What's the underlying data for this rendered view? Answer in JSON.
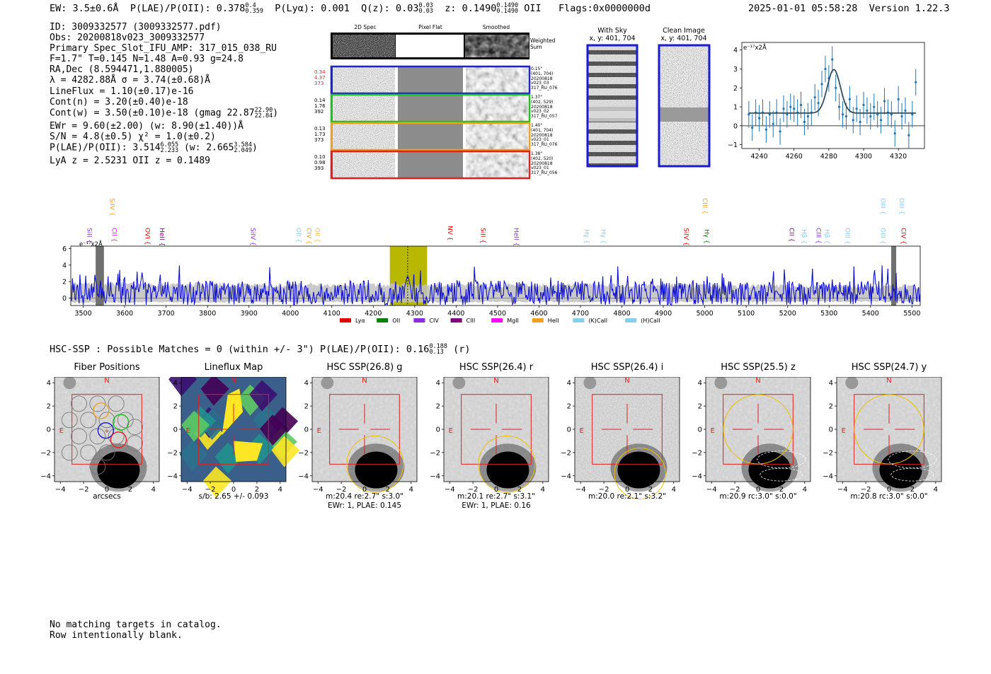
{
  "header": {
    "ew": "EW: 3.5±0.6Å",
    "plae_prefix": "P(LAE)/P(OII): 0.378",
    "plae_sup": "0.4",
    "plae_sub": "0.359",
    "plya": "P(Lyα): 0.001",
    "qz_prefix": "Q(z): 0.03",
    "qz_sup": "0.03",
    "qz_sub": "0.03",
    "z_prefix": "z: 0.1490",
    "z_sup": "0.1490",
    "z_sub": "0.1490",
    "z_line": "OII",
    "flags": "Flags:0x0000000d",
    "datetime": "2025-01-01 05:58:28",
    "version": "Version 1.22.3"
  },
  "info": {
    "id": "ID: 3009332577 (3009332577.pdf)",
    "obs": "Obs: 20200818v023_3009332577",
    "primary": "Primary Spec_Slot_IFU_AMP: 317_015_038_RU",
    "ftna": "F=1.7\"  T=0.145  N=1.48  A=0.93  g=24.8",
    "radec": "RA,Dec (8.594471,1.880005)",
    "lambda": "λ = 4282.88Å  σ = 3.74(±0.68)Å",
    "lineflux": "LineFlux = 1.10(±0.17)e-16",
    "contn": "Cont(n) = 3.20(±0.40)e-18",
    "contw_prefix": "Cont(w) = 3.50(±0.10)e-18 (gmag 22.87",
    "contw_sup": "22.90",
    "contw_sub": "22.84",
    "contw_suffix": ")",
    "ewr": "EWr = 9.60(±2.00) (w: 8.90(±1.40))Å",
    "sn": "S/N = 4.8(±0.5)  χ² = 1.0(±0.2)",
    "plae_prefix": "P(LAE)/P(OII): 3.514",
    "plae_sup": "6.055",
    "plae_sub": "2.233",
    "plae_mid": "(w: 2.665",
    "plae_w_sup": "3.584",
    "plae_w_sub": "2.049",
    "plae_end": ")",
    "lyaz": "LyA z = 2.5231  OII z = 0.1489"
  },
  "cutouts": {
    "col_2d": "2D Spec",
    "col_flat": "Pixel Flat",
    "col_smooth": "Smoothed",
    "weighted": "Weighted Sum",
    "rows": [
      {
        "left": [
          "0.34",
          "4.37",
          "373"
        ],
        "color": "#2020d0",
        "right": [
          "0.15\"",
          "(401, 704)",
          "20200818",
          "v023_03",
          "317_RU_076"
        ]
      },
      {
        "left": [
          "0.14",
          "1.76",
          "392"
        ],
        "color": "#20c020",
        "right": [
          "1.37\"",
          "(402, 529)",
          "20200818",
          "v023_02",
          "317_RU_057"
        ]
      },
      {
        "left": [
          "0.13",
          "1.73",
          "373"
        ],
        "color": "#f0a020",
        "right": [
          "1.40\"",
          "(401, 704)",
          "20200818",
          "v023_01",
          "317_RU_076"
        ]
      },
      {
        "left": [
          "0.10",
          "0.98",
          "393"
        ],
        "color": "#e02020",
        "right": [
          "1.38\"",
          "(402, 520)",
          "20200818",
          "v023_01",
          "317_RU_056"
        ]
      }
    ],
    "first_left_color": "#e02020",
    "with_sky_title": "With Sky",
    "with_sky_xy": "x, y: 401, 704",
    "clean_title": "Clean Image",
    "clean_xy": "x, y: 401, 704"
  },
  "fit_chart": {
    "type": "scatter",
    "ylabel": "e⁻¹⁷x2Å",
    "xlim": [
      4230,
      4335
    ],
    "ylim": [
      -1.2,
      4.4
    ],
    "x_ticks": [
      4240,
      4260,
      4280,
      4300,
      4320
    ],
    "y_ticks": [
      -1,
      0,
      1,
      2,
      3,
      4
    ],
    "x": [
      4234,
      4236,
      4238,
      4240,
      4242,
      4244,
      4246,
      4248,
      4250,
      4252,
      4254,
      4256,
      4258,
      4260,
      4262,
      4264,
      4266,
      4268,
      4270,
      4272,
      4274,
      4276,
      4278,
      4280,
      4282,
      4284,
      4286,
      4288,
      4290,
      4292,
      4294,
      4296,
      4298,
      4300,
      4302,
      4304,
      4306,
      4308,
      4310,
      4312,
      4314,
      4316,
      4318,
      4320,
      4322,
      4324,
      4326,
      4328,
      4330
    ],
    "y": [
      0.6,
      -0.1,
      0.7,
      0.4,
      0.7,
      -0.2,
      0.6,
      0.1,
      0.7,
      -0.3,
      0.9,
      0.6,
      1.0,
      0.9,
      0.7,
      1.1,
      0.2,
      0.5,
      0.7,
      1.5,
      1.2,
      2.2,
      3.0,
      2.5,
      3.5,
      2.0,
      1.0,
      0.6,
      0.5,
      1.4,
      0.3,
      0.9,
      0.2,
      1.1,
      0.8,
      0.5,
      1.0,
      0.6,
      0.3,
      1.3,
      0.7,
      0.6,
      -0.4,
      1.4,
      0.5,
      0.8,
      -0.5,
      0.6,
      2.3
    ],
    "err": [
      0.7,
      0.7,
      0.7,
      0.7,
      0.7,
      0.7,
      0.7,
      0.7,
      0.7,
      0.7,
      0.7,
      0.7,
      0.7,
      0.7,
      0.7,
      0.7,
      0.7,
      0.7,
      0.7,
      0.7,
      0.7,
      0.7,
      0.7,
      0.7,
      0.7,
      0.7,
      0.7,
      0.7,
      0.7,
      0.7,
      0.7,
      0.7,
      0.7,
      0.7,
      0.7,
      0.7,
      0.7,
      0.7,
      0.7,
      0.7,
      0.7,
      0.7,
      0.7,
      0.7,
      0.7,
      0.7,
      0.7,
      0.7,
      0.7
    ],
    "fit": {
      "continuum": 0.67,
      "amplitude": 2.3,
      "center": 4282.9,
      "sigma": 3.74
    }
  },
  "spectrum": {
    "type": "line",
    "ylabel": "e⁻¹⁷x2Å",
    "xlim": [
      3470,
      5520
    ],
    "ylim": [
      -0.9,
      6.3
    ],
    "x_ticks": [
      3500,
      3600,
      3700,
      3800,
      3900,
      4000,
      4100,
      4200,
      4300,
      4400,
      4500,
      4600,
      4700,
      4800,
      4900,
      5000,
      5100,
      5200,
      5300,
      5400,
      5500
    ],
    "y_ticks": [
      0,
      2,
      4,
      6
    ],
    "highlight": [
      4240,
      4330
    ],
    "marker": 4283,
    "masked": [
      [
        3530,
        3550
      ],
      [
        5450,
        5462
      ]
    ],
    "lines": [
      {
        "name": "SiII",
        "wave": 3505,
        "color": "#8a2be2",
        "row": 2
      },
      {
        "name": "CII",
        "wave": 3565,
        "color": "#ff00ff",
        "row": 2
      },
      {
        "name": "SiIV",
        "wave": 3560,
        "color": "#f0a020",
        "row": 0
      },
      {
        "name": "OVI",
        "wave": 3645,
        "color": "#e00000",
        "row": 2
      },
      {
        "name": "HeII",
        "wave": 3680,
        "color": "#800080",
        "row": 2
      },
      {
        "name": "SiIV",
        "wave": 3900,
        "color": "#8a2be2",
        "row": 2
      },
      {
        "name": "OII",
        "wave": 4010,
        "color": "#87ceeb",
        "row": 2
      },
      {
        "name": "CIV",
        "wave": 4035,
        "color": "#f0a020",
        "row": 2
      },
      {
        "name": "OII",
        "wave": 4055,
        "color": "#f0c040",
        "row": 2
      },
      {
        "name": "NV",
        "wave": 4375,
        "color": "#e00000",
        "row": 1
      },
      {
        "name": "SiII",
        "wave": 4455,
        "color": "#e00000",
        "row": 2
      },
      {
        "name": "HeII",
        "wave": 4535,
        "color": "#8a2be2",
        "row": 2
      },
      {
        "name": "Hγ",
        "wave": 4705,
        "color": "#87ceeb",
        "row": 3
      },
      {
        "name": "Hγ",
        "wave": 4745,
        "color": "#87ceeb",
        "row": 3
      },
      {
        "name": "SiIV",
        "wave": 4945,
        "color": "#e00000",
        "row": 2
      },
      {
        "name": "CIII",
        "wave": 4990,
        "color": "#f0a020",
        "row": 0
      },
      {
        "name": "Hγ",
        "wave": 4995,
        "color": "#008000",
        "row": 3
      },
      {
        "name": "CII",
        "wave": 5200,
        "color": "#800080",
        "row": 2
      },
      {
        "name": "Hβ",
        "wave": 5230,
        "color": "#87ceeb",
        "row": 3
      },
      {
        "name": "CIII",
        "wave": 5265,
        "color": "#8a2be2",
        "row": 2
      },
      {
        "name": "Hβ",
        "wave": 5285,
        "color": "#87ceeb",
        "row": 3
      },
      {
        "name": "OIII",
        "wave": 5335,
        "color": "#87ceeb",
        "row": 2
      },
      {
        "name": "OIII",
        "wave": 5420,
        "color": "#87ceeb",
        "row": 0
      },
      {
        "name": "OIII",
        "wave": 5465,
        "color": "#87ceeb",
        "row": 0
      },
      {
        "name": "OIII",
        "wave": 5420,
        "color": "#87ceeb",
        "row": 2
      },
      {
        "name": "CIV",
        "wave": 5470,
        "color": "#e00000",
        "row": 2
      }
    ],
    "legend": [
      {
        "name": "Lyα",
        "color": "#e00000"
      },
      {
        "name": "OII",
        "color": "#008000"
      },
      {
        "name": "CIV",
        "color": "#8a2be2"
      },
      {
        "name": "CIII",
        "color": "#800080"
      },
      {
        "name": "MgII",
        "color": "#ff00ff"
      },
      {
        "name": "HeII",
        "color": "#f0a020"
      },
      {
        "name": "(K)CaII",
        "color": "#87ceeb"
      },
      {
        "name": "(H)CaII",
        "color": "#87ceeb"
      }
    ]
  },
  "hsc": {
    "header_prefix": "HSC-SSP : Possible Matches = 0 (within +/- 3\")  P(LAE)/P(OII): 0.16",
    "header_sup": "0.188",
    "header_sub": "0.13",
    "header_suffix": "(r)",
    "axis_ticks": [
      "-4",
      "-2",
      "0",
      "2",
      "4"
    ],
    "north": "N",
    "east": "E",
    "panels": [
      {
        "title": "Fiber Positions",
        "caption1": "arcsecs",
        "caption2": "",
        "kind": "fiber"
      },
      {
        "title": "Lineflux Map",
        "caption1": "s/b: 2.65 +/- 0.093",
        "caption2": "",
        "kind": "lineflux"
      },
      {
        "title": "HSC SSP(26.8) g",
        "caption1": "m:20.4  re:2.7\"  s:3.0\"",
        "caption2": "EWr: 1, PLAE: 0.145",
        "kind": "g"
      },
      {
        "title": "HSC SSP(26.4) r",
        "caption1": "m:20.1  re:2.7\"  s:3.1\"",
        "caption2": "EWr: 1, PLAE: 0.16",
        "kind": "r"
      },
      {
        "title": "HSC SSP(26.4) i",
        "caption1": "m:20.0  re:2.1\"  s:3.2\"",
        "caption2": "",
        "kind": "i"
      },
      {
        "title": "HSC SSP(25.5) z",
        "caption1": "m:20.9 rc:3.0\"  s:0.0\"",
        "caption2": "",
        "kind": "z"
      },
      {
        "title": "HSC SSP(24.7) y",
        "caption1": "m:20.8 rc:3.0\"  s:0.0\"",
        "caption2": "",
        "kind": "y"
      }
    ]
  },
  "footer": {
    "line1": "No matching targets in catalog.",
    "line2": "Row intentionally blank."
  },
  "colors": {
    "spectrum": "#1010d0",
    "error": "#c0c0c0",
    "highlight": "#b8b800",
    "fit_points": "#1f77b4",
    "fit_model": "#2f4f5f",
    "box": "#e02020",
    "yellow": "#f0c000"
  }
}
